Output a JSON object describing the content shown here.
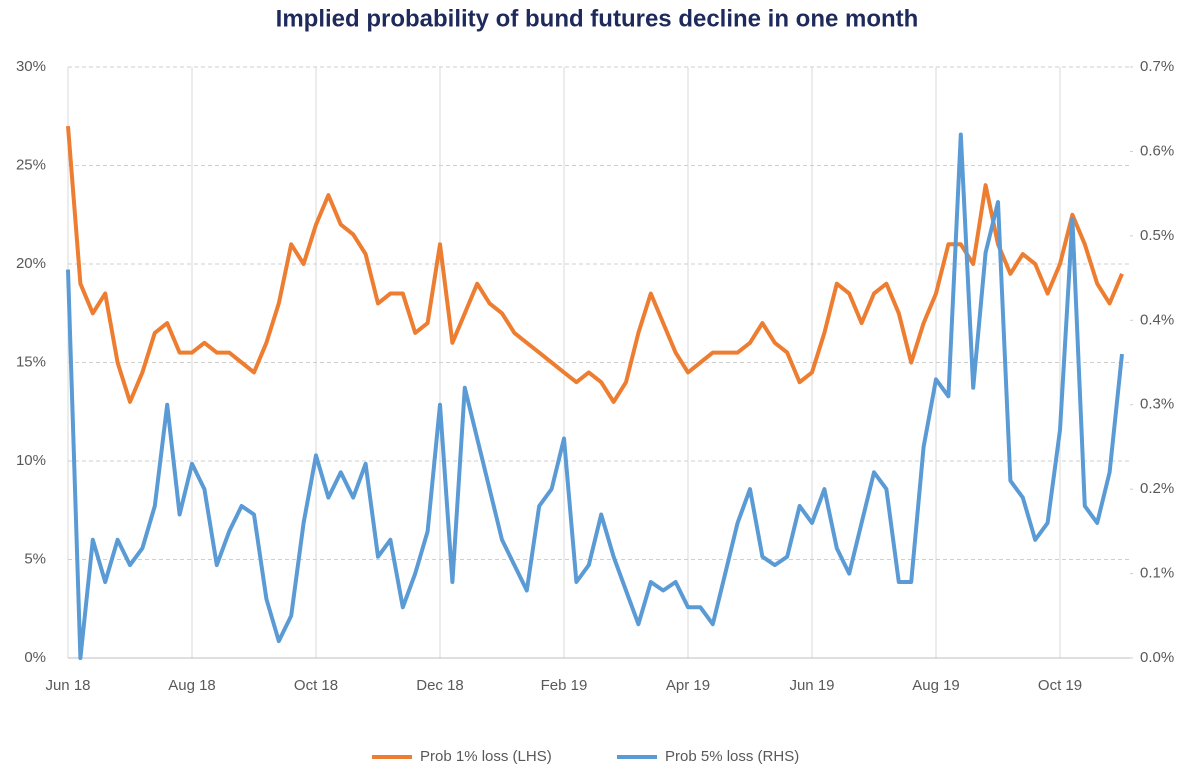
{
  "chart_data": {
    "type": "line",
    "title": "Implied probability of bund futures decline in one month",
    "categories": [
      "Jun 18",
      null,
      null,
      null,
      null,
      null,
      null,
      null,
      null,
      null,
      "Aug 18",
      null,
      null,
      null,
      null,
      null,
      null,
      null,
      null,
      null,
      "Oct 18",
      null,
      null,
      null,
      null,
      null,
      null,
      null,
      null,
      null,
      "Dec 18",
      null,
      null,
      null,
      null,
      null,
      null,
      null,
      null,
      null,
      "Feb 19",
      null,
      null,
      null,
      null,
      null,
      null,
      null,
      null,
      null,
      "Apr 19",
      null,
      null,
      null,
      null,
      null,
      null,
      null,
      null,
      null,
      "Jun 19",
      null,
      null,
      null,
      null,
      null,
      null,
      null,
      null,
      null,
      "Aug 19",
      null,
      null,
      null,
      null,
      null,
      null,
      null,
      null,
      null,
      "Oct 19",
      null,
      null,
      null,
      null,
      null
    ],
    "series": [
      {
        "name": "Prob 1% loss (LHS)",
        "color": "#ed7d31",
        "axis": "y",
        "values": [
          27,
          19,
          17.5,
          18.5,
          15,
          13,
          14.5,
          16.5,
          17,
          15.5,
          15.5,
          16,
          15.5,
          15.5,
          15,
          14.5,
          16,
          18,
          21,
          20,
          22,
          23.5,
          22,
          21.5,
          20.5,
          18,
          18.5,
          18.5,
          16.5,
          17,
          21,
          16,
          17.5,
          19,
          18,
          17.5,
          16.5,
          16,
          15.5,
          15,
          14.5,
          14,
          14.5,
          14,
          13,
          14,
          16.5,
          18.5,
          17,
          15.5,
          14.5,
          15,
          15.5,
          15.5,
          15.5,
          16,
          17,
          16,
          15.5,
          14,
          14.5,
          16.5,
          19,
          18.5,
          17,
          18.5,
          19,
          17.5,
          15,
          17,
          18.5,
          21,
          21,
          20,
          24,
          21,
          19.5,
          20.5,
          20,
          18.5,
          20,
          22.5,
          21,
          19,
          18,
          19.5
        ]
      },
      {
        "name": "Prob 5% loss (RHS)",
        "color": "#5b9bd5",
        "axis": "y2",
        "values": [
          0.46,
          0.0,
          0.14,
          0.09,
          0.14,
          0.11,
          0.13,
          0.18,
          0.3,
          0.17,
          0.23,
          0.2,
          0.11,
          0.15,
          0.18,
          0.17,
          0.07,
          0.02,
          0.05,
          0.16,
          0.24,
          0.19,
          0.22,
          0.19,
          0.23,
          0.12,
          0.14,
          0.06,
          0.1,
          0.15,
          0.3,
          0.09,
          0.32,
          0.26,
          0.2,
          0.14,
          0.11,
          0.08,
          0.18,
          0.2,
          0.26,
          0.09,
          0.11,
          0.17,
          0.12,
          0.08,
          0.04,
          0.09,
          0.08,
          0.09,
          0.06,
          0.06,
          0.04,
          0.1,
          0.16,
          0.2,
          0.12,
          0.11,
          0.12,
          0.18,
          0.16,
          0.2,
          0.13,
          0.1,
          0.16,
          0.22,
          0.2,
          0.09,
          0.09,
          0.25,
          0.33,
          0.31,
          0.62,
          0.32,
          0.48,
          0.54,
          0.21,
          0.19,
          0.14,
          0.16,
          0.27,
          0.52,
          0.18,
          0.16,
          0.22,
          0.36
        ]
      }
    ],
    "ylim": [
      0,
      30
    ],
    "yticks": [
      {
        "value": 0,
        "label": "0%"
      },
      {
        "value": 5,
        "label": "5%"
      },
      {
        "value": 10,
        "label": "10%"
      },
      {
        "value": 15,
        "label": "15%"
      },
      {
        "value": 20,
        "label": "20%"
      },
      {
        "value": 25,
        "label": "25%"
      },
      {
        "value": 30,
        "label": "30%"
      }
    ],
    "y2lim": [
      0,
      0.7
    ],
    "y2ticks": [
      {
        "value": 0,
        "label": "0.0%"
      },
      {
        "value": 0.1,
        "label": "0.1%"
      },
      {
        "value": 0.2,
        "label": "0.2%"
      },
      {
        "value": 0.3,
        "label": "0.3%"
      },
      {
        "value": 0.4,
        "label": "0.4%"
      },
      {
        "value": 0.5,
        "label": "0.5%"
      },
      {
        "value": 0.6,
        "label": "0.6%"
      },
      {
        "value": 0.7,
        "label": "0.7%"
      }
    ],
    "grid": true,
    "legend": "bottom"
  }
}
